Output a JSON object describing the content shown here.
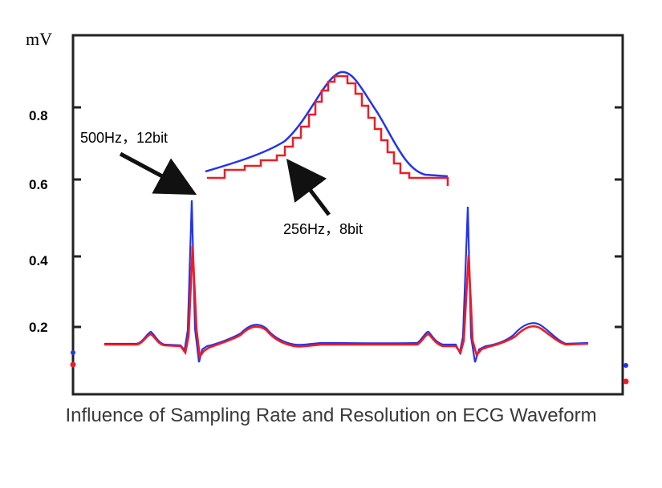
{
  "caption": "Influence of Sampling Rate and Resolution on ECG Waveform",
  "chart_data": {
    "type": "line",
    "title": "Influence of Sampling Rate and Resolution on ECG Waveform",
    "ylabel": "mV",
    "xlabel": "",
    "ylim": [
      0.05,
      0.95
    ],
    "yticks": [
      0.2,
      0.4,
      0.6,
      0.8
    ],
    "ytick_labels": [
      "0.2",
      "0.4",
      "0.6",
      "0.8"
    ],
    "grid": false,
    "colors": {
      "series_500hz": "#2233ee",
      "series_256hz": "#ee1c24"
    },
    "annotations": [
      {
        "text": "500Hz，12bit",
        "points_to": "R peak (blue)"
      },
      {
        "text": "256Hz，8bit",
        "points_to": "inset staircase (red)"
      }
    ],
    "series": [
      {
        "key": "blue",
        "description_value_peak_mV": 0.55
      },
      {
        "key": "red",
        "description_value_peak_mV": 0.42
      }
    ]
  }
}
